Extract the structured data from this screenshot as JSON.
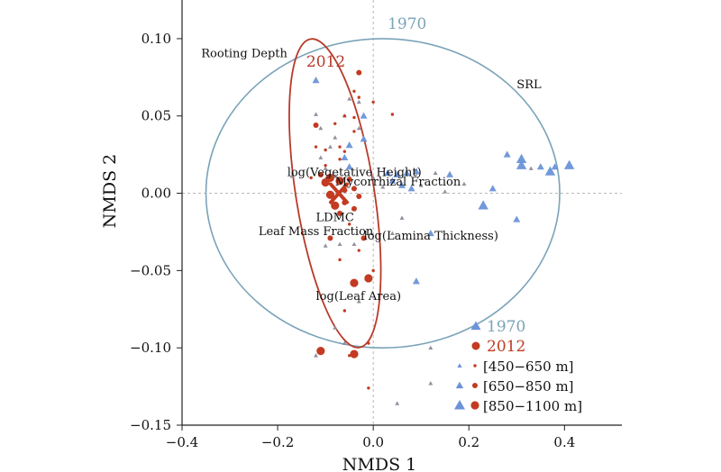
{
  "chart_data": {
    "type": "scatter",
    "xlabel": "NMDS 1",
    "ylabel": "NMDS 2",
    "xlim": [
      -0.4,
      0.52
    ],
    "ylim": [
      -0.15,
      0.125
    ],
    "xticks": [
      -0.4,
      -0.2,
      0.0,
      0.2,
      0.4
    ],
    "xtick_labels": [
      "−0.4",
      "−0.2",
      "0.0",
      "0.2",
      "0.4"
    ],
    "yticks": [
      -0.15,
      -0.1,
      -0.05,
      0.0,
      0.05,
      0.1
    ],
    "ytick_labels": [
      "−0.15",
      "−0.10",
      "−0.05",
      "0.00",
      "0.05",
      "0.10"
    ],
    "reference_lines": {
      "x": 0,
      "y": 0,
      "style": "dashed"
    },
    "colors": {
      "y1970": "#6a93d8",
      "y2012": "#c23b22",
      "ellipse1970": "#7aa3b8",
      "ellipse2012": "#b83a2a"
    },
    "ellipses": [
      {
        "name": "1970",
        "center": [
          0.02,
          0.0
        ],
        "rx": 0.37,
        "ry": 0.1
      },
      {
        "name": "2012",
        "center": [
          -0.08,
          0.0
        ],
        "rx": 0.082,
        "ry": 0.101,
        "rotation_deg": -9
      }
    ],
    "ellipse_labels": [
      {
        "text": "1970",
        "x": 0.03,
        "y": 0.1065,
        "series": "1970"
      },
      {
        "text": "2012",
        "x": -0.14,
        "y": 0.082,
        "series": "2012"
      }
    ],
    "trait_labels": [
      {
        "text": "Rooting Depth",
        "x": -0.36,
        "y": 0.088
      },
      {
        "text": "SRL",
        "x": 0.3,
        "y": 0.068
      },
      {
        "text": "log(Vegetative Height)",
        "x": -0.18,
        "y": 0.011
      },
      {
        "text": "Mycorrhizal Fraction",
        "x": -0.08,
        "y": 0.005
      },
      {
        "text": "LDMC",
        "x": -0.12,
        "y": -0.018
      },
      {
        "text": "Leaf Mass Fraction",
        "x": -0.24,
        "y": -0.027
      },
      {
        "text": "log(Lamina Thickness)",
        "x": -0.02,
        "y": -0.03
      },
      {
        "text": "log(Leaf Area)",
        "x": -0.12,
        "y": -0.069
      }
    ],
    "elevation_sizes": {
      "450-650 m": 1,
      "650-850 m": 2,
      "850-1100 m": 3
    },
    "series": [
      {
        "name": "1970",
        "marker": "triangle",
        "points": [
          {
            "x": -0.12,
            "y": 0.073,
            "s": 2
          },
          {
            "x": -0.05,
            "y": 0.061,
            "s": 1
          },
          {
            "x": -0.03,
            "y": 0.059,
            "s": 1
          },
          {
            "x": -0.02,
            "y": 0.05,
            "s": 2
          },
          {
            "x": -0.06,
            "y": 0.05,
            "s": 1
          },
          {
            "x": -0.12,
            "y": 0.051,
            "s": 1
          },
          {
            "x": -0.11,
            "y": 0.042,
            "s": 1
          },
          {
            "x": -0.03,
            "y": 0.042,
            "s": 1
          },
          {
            "x": -0.08,
            "y": 0.036,
            "s": 1
          },
          {
            "x": -0.09,
            "y": 0.03,
            "s": 1
          },
          {
            "x": -0.05,
            "y": 0.031,
            "s": 2
          },
          {
            "x": -0.02,
            "y": 0.035,
            "s": 2
          },
          {
            "x": -0.11,
            "y": 0.023,
            "s": 1
          },
          {
            "x": -0.06,
            "y": 0.023,
            "s": 2
          },
          {
            "x": -0.1,
            "y": 0.016,
            "s": 1
          },
          {
            "x": -0.05,
            "y": 0.017,
            "s": 2
          },
          {
            "x": -0.08,
            "y": 0.011,
            "s": 1
          },
          {
            "x": 0.0,
            "y": 0.01,
            "s": 1
          },
          {
            "x": 0.03,
            "y": 0.013,
            "s": 2
          },
          {
            "x": 0.05,
            "y": 0.012,
            "s": 2
          },
          {
            "x": 0.07,
            "y": 0.013,
            "s": 2
          },
          {
            "x": 0.09,
            "y": 0.014,
            "s": 2
          },
          {
            "x": 0.06,
            "y": 0.005,
            "s": 2
          },
          {
            "x": 0.1,
            "y": 0.005,
            "s": 1
          },
          {
            "x": 0.08,
            "y": 0.003,
            "s": 2
          },
          {
            "x": 0.02,
            "y": 0.004,
            "s": 1
          },
          {
            "x": 0.04,
            "y": 0.008,
            "s": 2
          },
          {
            "x": 0.13,
            "y": 0.013,
            "s": 1
          },
          {
            "x": 0.16,
            "y": 0.012,
            "s": 2
          },
          {
            "x": 0.19,
            "y": 0.006,
            "s": 1
          },
          {
            "x": 0.15,
            "y": 0.001,
            "s": 1
          },
          {
            "x": 0.25,
            "y": 0.003,
            "s": 2
          },
          {
            "x": 0.23,
            "y": -0.008,
            "s": 3
          },
          {
            "x": 0.3,
            "y": -0.017,
            "s": 2
          },
          {
            "x": 0.28,
            "y": 0.025,
            "s": 2
          },
          {
            "x": 0.31,
            "y": 0.022,
            "s": 3
          },
          {
            "x": 0.31,
            "y": 0.018,
            "s": 3
          },
          {
            "x": 0.33,
            "y": 0.016,
            "s": 1
          },
          {
            "x": 0.35,
            "y": 0.017,
            "s": 2
          },
          {
            "x": 0.37,
            "y": 0.014,
            "s": 3
          },
          {
            "x": 0.38,
            "y": 0.017,
            "s": 2
          },
          {
            "x": 0.41,
            "y": 0.018,
            "s": 3
          },
          {
            "x": 0.12,
            "y": -0.026,
            "s": 2
          },
          {
            "x": 0.09,
            "y": -0.057,
            "s": 2
          },
          {
            "x": -0.04,
            "y": -0.033,
            "s": 1
          },
          {
            "x": -0.07,
            "y": -0.033,
            "s": 1
          },
          {
            "x": 0.06,
            "y": -0.016,
            "s": 1
          },
          {
            "x": 0.04,
            "y": -0.026,
            "s": 1
          },
          {
            "x": -0.17,
            "y": 0.011,
            "s": 1
          },
          {
            "x": -0.03,
            "y": -0.07,
            "s": 1
          },
          {
            "x": -0.08,
            "y": -0.087,
            "s": 1
          },
          {
            "x": -0.06,
            "y": -0.097,
            "s": 1
          },
          {
            "x": -0.12,
            "y": -0.105,
            "s": 1
          },
          {
            "x": 0.12,
            "y": -0.1,
            "s": 1
          },
          {
            "x": 0.12,
            "y": -0.123,
            "s": 1
          },
          {
            "x": 0.05,
            "y": -0.136,
            "s": 1
          },
          {
            "x": -0.1,
            "y": -0.034,
            "s": 1
          }
        ]
      },
      {
        "name": "2012",
        "marker": "circle",
        "points": [
          {
            "x": -0.03,
            "y": 0.078,
            "s": 2
          },
          {
            "x": -0.04,
            "y": 0.066,
            "s": 1
          },
          {
            "x": -0.03,
            "y": 0.062,
            "s": 1
          },
          {
            "x": -0.06,
            "y": 0.05,
            "s": 1
          },
          {
            "x": -0.04,
            "y": 0.049,
            "s": 1
          },
          {
            "x": 0.04,
            "y": 0.051,
            "s": 1
          },
          {
            "x": -0.08,
            "y": 0.045,
            "s": 1
          },
          {
            "x": -0.12,
            "y": 0.044,
            "s": 2
          },
          {
            "x": -0.04,
            "y": 0.04,
            "s": 1
          },
          {
            "x": -0.12,
            "y": 0.03,
            "s": 1
          },
          {
            "x": -0.1,
            "y": 0.028,
            "s": 1
          },
          {
            "x": -0.06,
            "y": 0.027,
            "s": 1
          },
          {
            "x": -0.07,
            "y": 0.022,
            "s": 1
          },
          {
            "x": -0.1,
            "y": 0.018,
            "s": 1
          },
          {
            "x": -0.13,
            "y": 0.01,
            "s": 1
          },
          {
            "x": -0.11,
            "y": 0.012,
            "s": 2
          },
          {
            "x": -0.1,
            "y": 0.007,
            "s": 3
          },
          {
            "x": -0.09,
            "y": 0.01,
            "s": 3
          },
          {
            "x": -0.07,
            "y": 0.008,
            "s": 3
          },
          {
            "x": -0.05,
            "y": 0.009,
            "s": 2
          },
          {
            "x": -0.04,
            "y": 0.003,
            "s": 2
          },
          {
            "x": -0.06,
            "y": 0.002,
            "s": 2
          },
          {
            "x": -0.09,
            "y": -0.001,
            "s": 3
          },
          {
            "x": -0.03,
            "y": -0.002,
            "s": 2
          },
          {
            "x": -0.08,
            "y": -0.008,
            "s": 3
          },
          {
            "x": -0.06,
            "y": -0.006,
            "s": 2
          },
          {
            "x": -0.04,
            "y": -0.01,
            "s": 2
          },
          {
            "x": -0.07,
            "y": -0.013,
            "s": 2
          },
          {
            "x": -0.05,
            "y": -0.02,
            "s": 1
          },
          {
            "x": -0.09,
            "y": -0.029,
            "s": 2
          },
          {
            "x": -0.02,
            "y": -0.029,
            "s": 2
          },
          {
            "x": -0.03,
            "y": -0.037,
            "s": 1
          },
          {
            "x": -0.07,
            "y": -0.043,
            "s": 1
          },
          {
            "x": -0.01,
            "y": -0.055,
            "s": 3
          },
          {
            "x": -0.04,
            "y": -0.058,
            "s": 3
          },
          {
            "x": 0.0,
            "y": -0.05,
            "s": 1
          },
          {
            "x": -0.06,
            "y": -0.076,
            "s": 1
          },
          {
            "x": -0.11,
            "y": -0.102,
            "s": 3
          },
          {
            "x": -0.04,
            "y": -0.104,
            "s": 3
          },
          {
            "x": -0.01,
            "y": -0.097,
            "s": 1
          },
          {
            "x": -0.05,
            "y": -0.105,
            "s": 1
          },
          {
            "x": -0.01,
            "y": -0.126,
            "s": 1
          },
          {
            "x": 0.0,
            "y": 0.059,
            "s": 1
          },
          {
            "x": -0.07,
            "y": 0.03,
            "s": 1
          }
        ]
      }
    ],
    "centroid_marker_2012": {
      "x": -0.072,
      "y": 0.0
    },
    "legend": {
      "placement": "bottom-right",
      "entries": [
        {
          "text": "1970",
          "marker": "triangle",
          "series": "1970"
        },
        {
          "text": "2012",
          "marker": "circle",
          "series": "2012"
        },
        {
          "text": "[450−650 m]",
          "size": 1
        },
        {
          "text": "[650−850 m]",
          "size": 2
        },
        {
          "text": "[850−1100 m]",
          "size": 3
        }
      ]
    }
  }
}
